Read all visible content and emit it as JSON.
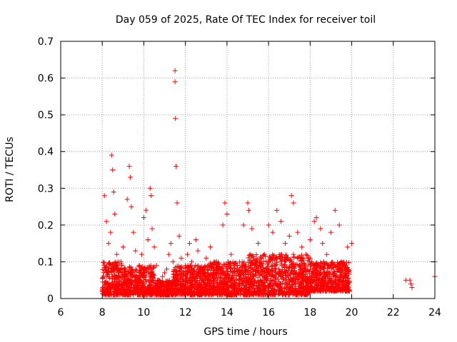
{
  "chart_data": {
    "type": "scatter",
    "title": "Day 059 of 2025, Rate Of TEC Index for receiver toil",
    "xlabel": "GPS time / hours",
    "ylabel": "ROTI / TECUs",
    "xlim": [
      6,
      24
    ],
    "ylim": [
      0,
      0.7
    ],
    "xticks": [
      "6",
      "8",
      "10",
      "12",
      "14",
      "16",
      "18",
      "20",
      "22",
      "24"
    ],
    "yticks": [
      "0",
      "0.1",
      "0.2",
      "0.3",
      "0.4",
      "0.5",
      "0.6",
      "0.7"
    ],
    "grid": true,
    "marker": "+",
    "colors": {
      "points": "#ff0000",
      "grid": "#a0a0a0",
      "axes": "#000000"
    },
    "series": [
      {
        "x": [
          8.0,
          8.1,
          8.2,
          8.3,
          8.4,
          8.45,
          8.5,
          8.55,
          8.6,
          8.7,
          8.8,
          8.9,
          9.0,
          9.1,
          9.2,
          9.3,
          9.35,
          9.4,
          9.5,
          9.6,
          9.7,
          9.8,
          9.9,
          10.0,
          10.1,
          10.2,
          10.3,
          10.35,
          10.4,
          10.5,
          10.6,
          10.7,
          10.8,
          10.9,
          11.0,
          11.1,
          11.2,
          11.3,
          11.4,
          11.5,
          11.5,
          11.52,
          11.55,
          11.6,
          11.7,
          11.8,
          11.9,
          12.0,
          12.1,
          12.2,
          12.3,
          12.5,
          12.6,
          12.8,
          13.0,
          13.2,
          13.5,
          13.8,
          13.9,
          14.0,
          14.2,
          14.5,
          14.8,
          15.0,
          15.05,
          15.2,
          15.5,
          15.8,
          16.0,
          16.2,
          16.4,
          16.6,
          16.8,
          17.0,
          17.1,
          17.2,
          17.4,
          17.6,
          17.8,
          18.0,
          18.2,
          18.3,
          18.5,
          18.6,
          18.8,
          19.0,
          19.2,
          19.4,
          19.5,
          19.7,
          19.8,
          20.0,
          22.6,
          22.8,
          22.85,
          22.9,
          24.0,
          24.0
        ],
        "y": [
          0.02,
          0.28,
          0.21,
          0.15,
          0.18,
          0.39,
          0.35,
          0.29,
          0.23,
          0.12,
          0.08,
          0.1,
          0.14,
          0.06,
          0.27,
          0.36,
          0.33,
          0.25,
          0.18,
          0.13,
          0.05,
          0.09,
          0.12,
          0.22,
          0.24,
          0.16,
          0.3,
          0.28,
          0.19,
          0.14,
          0.09,
          0.05,
          0.04,
          0.06,
          0.07,
          0.08,
          0.12,
          0.15,
          0.1,
          0.62,
          0.59,
          0.49,
          0.36,
          0.26,
          0.17,
          0.11,
          0.07,
          0.09,
          0.12,
          0.15,
          0.1,
          0.16,
          0.13,
          0.08,
          0.11,
          0.14,
          0.1,
          0.2,
          0.26,
          0.23,
          0.12,
          0.09,
          0.2,
          0.26,
          0.24,
          0.19,
          0.15,
          0.12,
          0.2,
          0.18,
          0.24,
          0.21,
          0.15,
          0.17,
          0.28,
          0.26,
          0.18,
          0.14,
          0.12,
          0.16,
          0.21,
          0.22,
          0.19,
          0.15,
          0.12,
          0.18,
          0.24,
          0.2,
          0.1,
          0.09,
          0.14,
          0.15,
          0.05,
          0.05,
          0.04,
          0.03,
          0.1,
          0.06
        ]
      }
    ],
    "dense_band": {
      "description": "",
      "segments": [
        {
          "x": [
            8.0,
            9.0
          ],
          "y": [
            0.01,
            0.1
          ]
        },
        {
          "x": [
            9.0,
            10.5
          ],
          "y": [
            0.01,
            0.09
          ]
        },
        {
          "x": [
            10.5,
            11.4
          ],
          "y": [
            0.01,
            0.05
          ]
        },
        {
          "x": [
            11.4,
            13.0
          ],
          "y": [
            0.01,
            0.09
          ]
        },
        {
          "x": [
            13.0,
            15.0
          ],
          "y": [
            0.01,
            0.1
          ]
        },
        {
          "x": [
            15.0,
            18.0
          ],
          "y": [
            0.01,
            0.12
          ]
        },
        {
          "x": [
            18.0,
            19.9
          ],
          "y": [
            0.02,
            0.1
          ]
        }
      ]
    }
  }
}
